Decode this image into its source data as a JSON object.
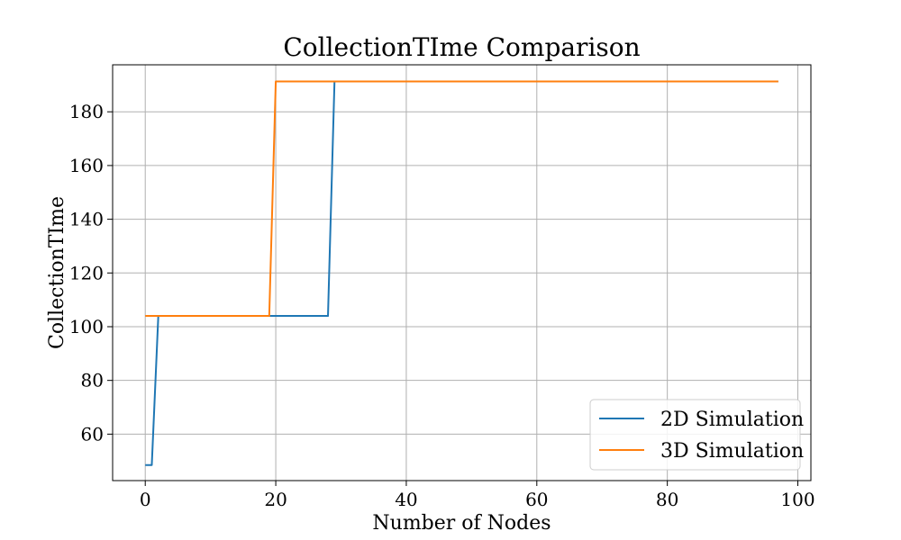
{
  "chart_data": {
    "type": "line",
    "title": "CollectionTIme Comparison",
    "xlabel": "Number of Nodes",
    "ylabel": "CollectionTIme",
    "xlim": [
      -5,
      102
    ],
    "ylim": [
      42.7,
      197.5
    ],
    "xticks": [
      0,
      20,
      40,
      60,
      80,
      100
    ],
    "yticks": [
      60,
      80,
      100,
      120,
      140,
      160,
      180
    ],
    "grid": true,
    "legend_position": "bottom-right",
    "series": [
      {
        "name": "2D Simulation",
        "color": "#1f77b4",
        "x": [
          0,
          1,
          2,
          28,
          29,
          97
        ],
        "y": [
          48.5,
          48.5,
          104,
          104,
          191.3,
          191.3
        ]
      },
      {
        "name": "3D Simulation",
        "color": "#ff7f0e",
        "x": [
          0,
          19,
          20,
          97
        ],
        "y": [
          104,
          104,
          191.3,
          191.3
        ]
      }
    ]
  }
}
